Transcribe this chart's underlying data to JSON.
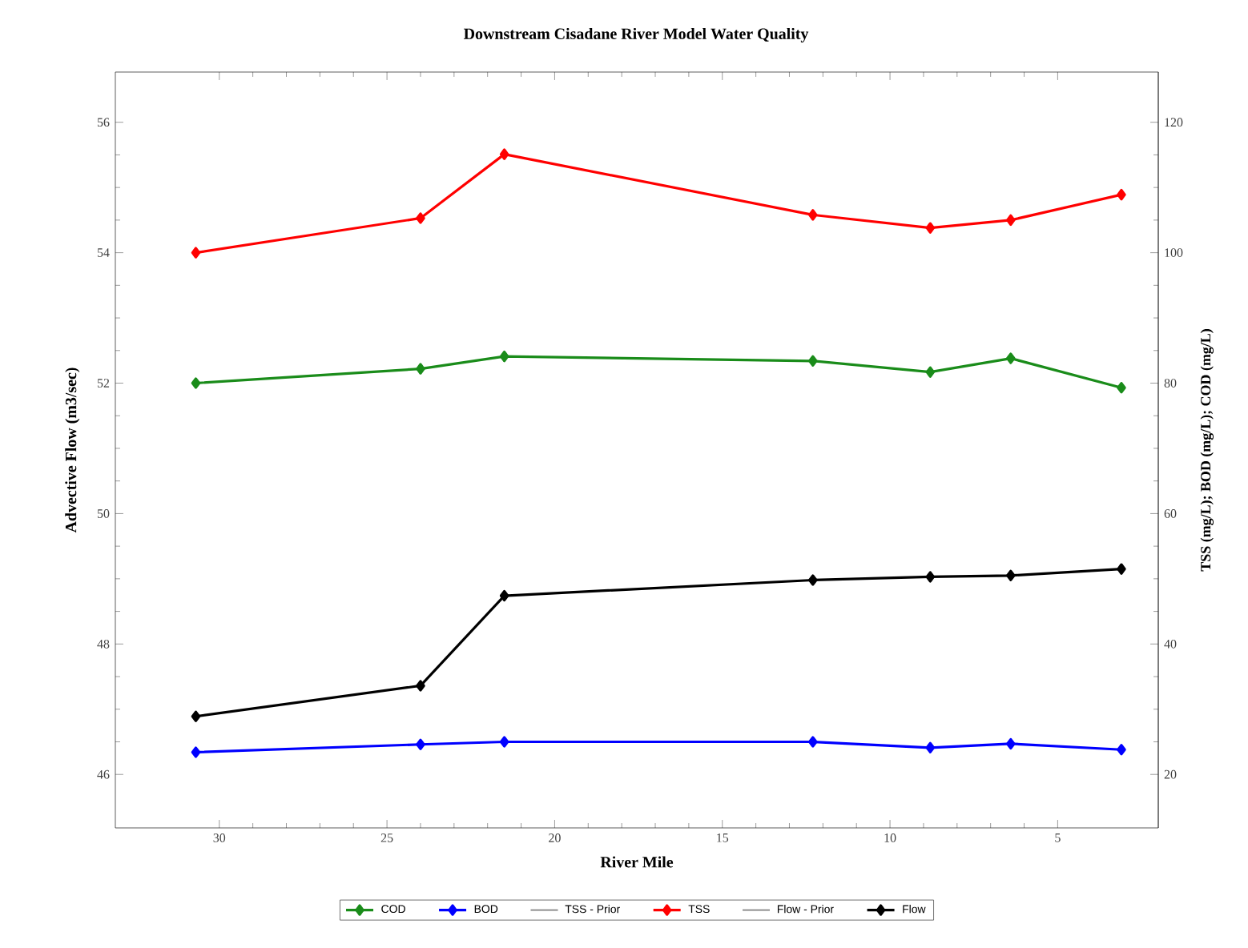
{
  "chart_data": {
    "type": "line",
    "title": "Downstream Cisadane River Model Water Quality",
    "xlabel": "River Mile",
    "ylabel": "Advective Flow  (m3/sec)",
    "y2label": "TSS (mg/L); BOD  (mg/L); COD (mg/L)",
    "x": [
      30.7,
      24.0,
      21.5,
      12.3,
      8.8,
      6.4,
      3.1
    ],
    "xlim": [
      33.1,
      2
    ],
    "xticks": [
      30,
      25,
      20,
      15,
      10,
      5
    ],
    "ylim": [
      45.18,
      56.77
    ],
    "yticks": [
      46,
      48,
      50,
      52,
      54,
      56
    ],
    "y2lim": [
      11.8,
      127.7
    ],
    "y2ticks": [
      20,
      40,
      60,
      80,
      100,
      120
    ],
    "marker": "diamond",
    "line_style": "solid",
    "grid": false,
    "legend": "bottom",
    "series": [
      {
        "name": "COD",
        "color": "#1a8c1a",
        "axis": "y2",
        "values": [
          80,
          82.2,
          84.1,
          83.4,
          81.7,
          83.8,
          79.3
        ]
      },
      {
        "name": "BOD",
        "color": "#0000ff",
        "axis": "y2",
        "values": [
          23.4,
          24.6,
          25.0,
          25.0,
          24.1,
          24.7,
          23.8
        ]
      },
      {
        "name": "TSS - Prior",
        "color": "#808080",
        "axis": "y2",
        "marker": "none",
        "values": [
          null,
          null,
          null,
          null,
          null,
          null,
          null
        ]
      },
      {
        "name": "TSS",
        "color": "#ff0000",
        "axis": "y2",
        "values": [
          100,
          105.3,
          115.1,
          105.8,
          103.8,
          105,
          108.9
        ]
      },
      {
        "name": "Flow - Prior",
        "color": "#808080",
        "axis": "y",
        "marker": "none",
        "values": [
          null,
          null,
          null,
          null,
          null,
          null,
          null
        ]
      },
      {
        "name": "Flow",
        "color": "#000000",
        "axis": "y",
        "values": [
          46.89,
          47.36,
          48.74,
          48.98,
          49.03,
          49.05,
          49.15
        ]
      }
    ]
  }
}
